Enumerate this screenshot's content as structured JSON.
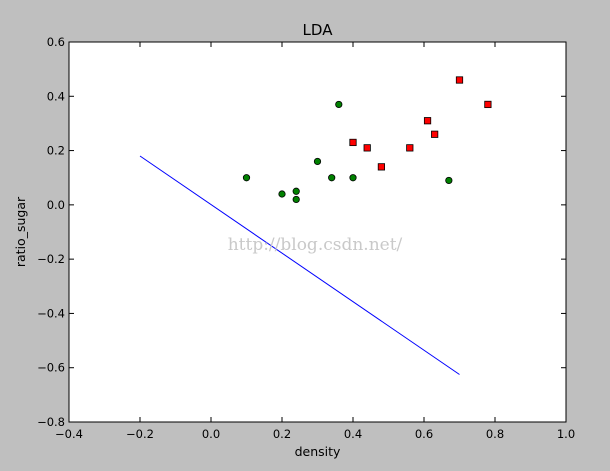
{
  "chart_data": {
    "type": "scatter",
    "title": "LDA",
    "xlabel": "density",
    "ylabel": "ratio_sugar",
    "xlim": [
      -0.4,
      1.0
    ],
    "ylim": [
      -0.8,
      0.6
    ],
    "xticks": [
      "−0.4",
      "−0.2",
      "0.0",
      "0.2",
      "0.4",
      "0.6",
      "0.8",
      "1.0"
    ],
    "yticks": [
      "−0.8",
      "−0.6",
      "−0.4",
      "−0.2",
      "0.0",
      "0.2",
      "0.4",
      "0.6"
    ],
    "xtick_values": [
      -0.4,
      -0.2,
      0.0,
      0.2,
      0.4,
      0.6,
      0.8,
      1.0
    ],
    "ytick_values": [
      -0.8,
      -0.6,
      -0.4,
      -0.2,
      0.0,
      0.2,
      0.4,
      0.6
    ],
    "grid": false,
    "background_color": "#bfbfbf",
    "plot_color": "#ffffff",
    "series": [
      {
        "marker": "circle",
        "color": "#008000",
        "points": [
          [
            0.1,
            0.1
          ],
          [
            0.2,
            0.04
          ],
          [
            0.24,
            0.05
          ],
          [
            0.24,
            0.02
          ],
          [
            0.3,
            0.16
          ],
          [
            0.34,
            0.1
          ],
          [
            0.36,
            0.37
          ],
          [
            0.4,
            0.1
          ],
          [
            0.67,
            0.09
          ]
        ]
      },
      {
        "marker": "square",
        "color": "#ff0000",
        "points": [
          [
            0.4,
            0.23
          ],
          [
            0.44,
            0.21
          ],
          [
            0.48,
            0.14
          ],
          [
            0.56,
            0.21
          ],
          [
            0.61,
            0.31
          ],
          [
            0.63,
            0.26
          ],
          [
            0.7,
            0.46
          ],
          [
            0.78,
            0.37
          ]
        ]
      },
      {
        "marker": "line",
        "color": "#0000ff",
        "points": [
          [
            -0.2,
            0.18
          ],
          [
            0.7,
            -0.625
          ]
        ]
      }
    ],
    "watermark": "http://blog.csdn.net/"
  }
}
